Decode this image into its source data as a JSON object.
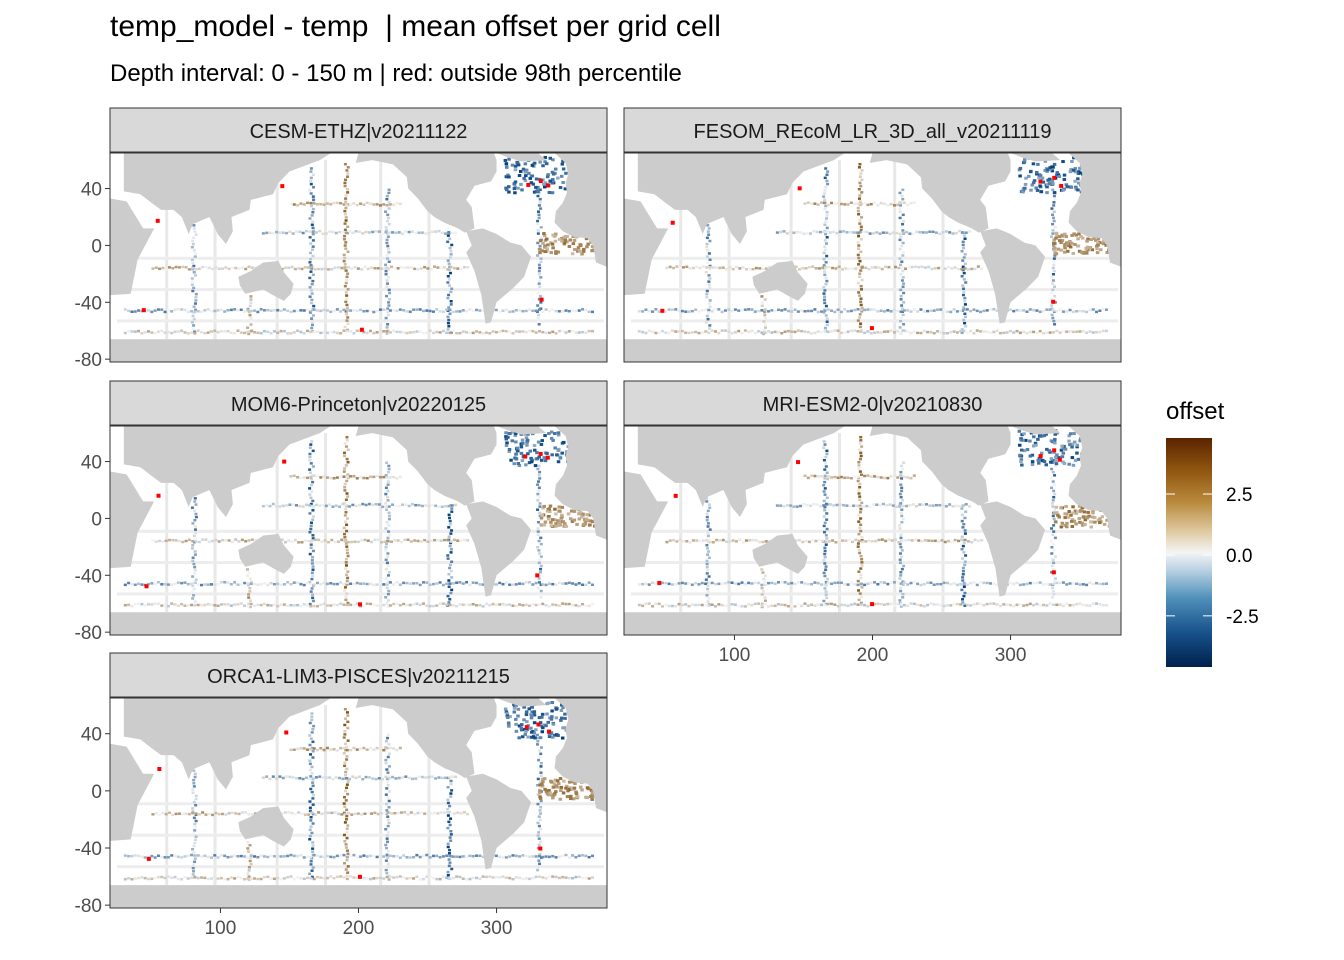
{
  "title": "temp_model - temp  | mean offset per grid cell",
  "subtitle": "Depth interval: 0 - 150 m | red: outside 98th percentile",
  "colors": {
    "land": "#cccccc",
    "ocean": "#ffffff",
    "strip_fill": "#d9d9d9",
    "outlier": "#ff0000",
    "scale_low": "#00204d",
    "scale_mid": "#f4f4f4",
    "scale_high": "#6b2f00"
  },
  "chart_data": {
    "type": "heatmap",
    "facets": [
      "CESM-ETHZ|v20211122",
      "FESOM_REcoM_LR_3D_all_v20211119",
      "MOM6-Princeton|v20220125",
      "MRI-ESM2-0|v20210830",
      "ORCA1-LIM3-PISCES|v20211215"
    ],
    "x_ticks": [
      100,
      200,
      300
    ],
    "y_ticks": [
      40,
      0,
      -40,
      -80
    ],
    "x_tick_labels": [
      "100",
      "200",
      "300"
    ],
    "y_tick_labels": [
      "40",
      "0",
      "-40",
      "-80"
    ],
    "xlim": [
      20,
      380
    ],
    "ylim": [
      -82,
      65
    ],
    "legend": {
      "title": "offset",
      "ticks": [
        2.5,
        0.0,
        -2.5
      ],
      "tick_labels": [
        "2.5",
        "0.0",
        "-2.5"
      ],
      "range": [
        -4.6,
        4.8
      ],
      "position": "right"
    }
  }
}
